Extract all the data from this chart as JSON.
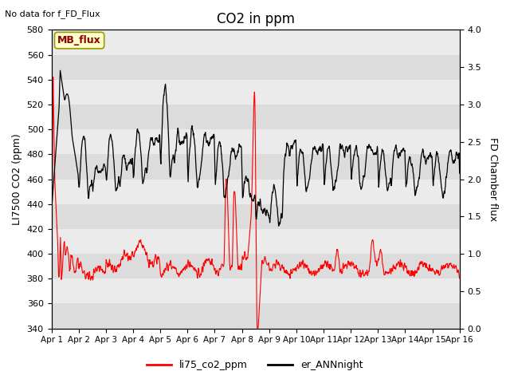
{
  "title": "CO2 in ppm",
  "top_left_text": "No data for f_FD_Flux",
  "ylabel_left": "LI7500 CO2 (ppm)",
  "ylabel_right": "FD Chamber flux",
  "ylim_left": [
    340,
    580
  ],
  "ylim_right": [
    0.0,
    4.0
  ],
  "yticks_left": [
    340,
    360,
    380,
    400,
    420,
    440,
    460,
    480,
    500,
    520,
    540,
    560,
    580
  ],
  "yticks_right": [
    0.0,
    0.5,
    1.0,
    1.5,
    2.0,
    2.5,
    3.0,
    3.5,
    4.0
  ],
  "xticklabels": [
    "Apr 1",
    "Apr 2",
    "Apr 3",
    "Apr 4",
    "Apr 5",
    "Apr 6",
    "Apr 7",
    "Apr 8",
    "Apr 9",
    "Apr 10",
    "Apr 11",
    "Apr 12",
    "Apr 13",
    "Apr 14",
    "Apr 15",
    "Apr 16"
  ],
  "annotation_text": "MB_flux",
  "legend_labels": [
    "li75_co2_ppm",
    "er_ANNnight"
  ],
  "legend_colors": [
    "red",
    "black"
  ],
  "bg_color": "#dcdcdc",
  "band_color": "#ebebeb",
  "figsize": [
    6.4,
    4.8
  ],
  "dpi": 100
}
